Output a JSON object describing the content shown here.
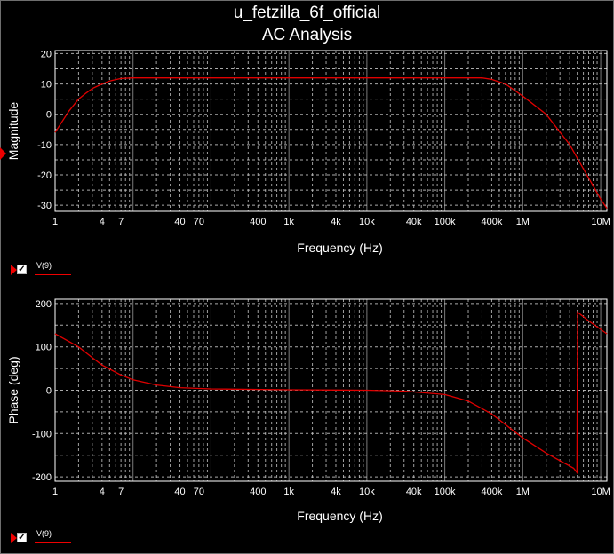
{
  "window": {
    "title_line1": "u_fetzilla_6f_official",
    "title_line2": "AC Analysis"
  },
  "colors": {
    "background": "#000000",
    "grid": "#c8c8c8",
    "axes": "#ffffff",
    "trace": "#e00000",
    "text": "#ffffff"
  },
  "chart_data": [
    {
      "type": "line",
      "title": "",
      "xlabel": "Frequency (Hz)",
      "ylabel": "Magnitude",
      "xscale": "log",
      "xlim": [
        1,
        12000000
      ],
      "ylim": [
        -32,
        21
      ],
      "grid": true,
      "x_tick_labels": [
        "1",
        "4",
        "7",
        "40",
        "70",
        "400",
        "1k",
        "4k",
        "10k",
        "40k",
        "100k",
        "400k",
        "1M",
        "10M"
      ],
      "x_tick_values": [
        1,
        4,
        7,
        40,
        70,
        400,
        1000,
        4000,
        10000,
        40000,
        100000,
        400000,
        1000000,
        10000000
      ],
      "y_ticks": [
        20,
        10,
        0,
        -10,
        -20,
        -30
      ],
      "series": [
        {
          "name": "V(9)",
          "x": [
            1,
            1.5,
            2,
            2.5,
            3,
            4,
            5,
            7,
            10,
            20,
            50,
            100,
            1000,
            10000,
            100000,
            300000,
            400000,
            600000,
            1000000,
            2000000,
            4000000,
            6000000,
            10000000,
            12000000
          ],
          "y": [
            -6,
            1,
            5,
            7,
            8.5,
            10,
            11,
            11.8,
            12,
            12,
            12,
            12,
            12,
            12,
            12,
            12,
            11.5,
            10,
            6,
            0,
            -10,
            -18,
            -28,
            -31
          ]
        }
      ]
    },
    {
      "type": "line",
      "title": "",
      "xlabel": "Frequency (Hz)",
      "ylabel": "Phase (deg)",
      "xscale": "log",
      "xlim": [
        1,
        12000000
      ],
      "ylim": [
        -210,
        210
      ],
      "grid": true,
      "x_tick_labels": [
        "1",
        "4",
        "7",
        "40",
        "70",
        "400",
        "1k",
        "4k",
        "10k",
        "40k",
        "100k",
        "400k",
        "1M",
        "10M"
      ],
      "x_tick_values": [
        1,
        4,
        7,
        40,
        70,
        400,
        1000,
        4000,
        10000,
        40000,
        100000,
        400000,
        1000000,
        10000000
      ],
      "y_ticks": [
        200,
        100,
        0,
        -100,
        -200
      ],
      "series": [
        {
          "name": "V(9)",
          "x": [
            1,
            2,
            3,
            4,
            7,
            10,
            20,
            40,
            100,
            1000,
            10000,
            30000,
            100000,
            200000,
            400000,
            1000000,
            2000000,
            4500000,
            4950000,
            5050000,
            7000000,
            12000000
          ],
          "y": [
            130,
            100,
            75,
            58,
            35,
            24,
            12,
            6,
            3,
            1,
            0,
            -2,
            -10,
            -25,
            -55,
            -110,
            -145,
            -180,
            -190,
            180,
            160,
            130
          ]
        }
      ]
    }
  ]
}
